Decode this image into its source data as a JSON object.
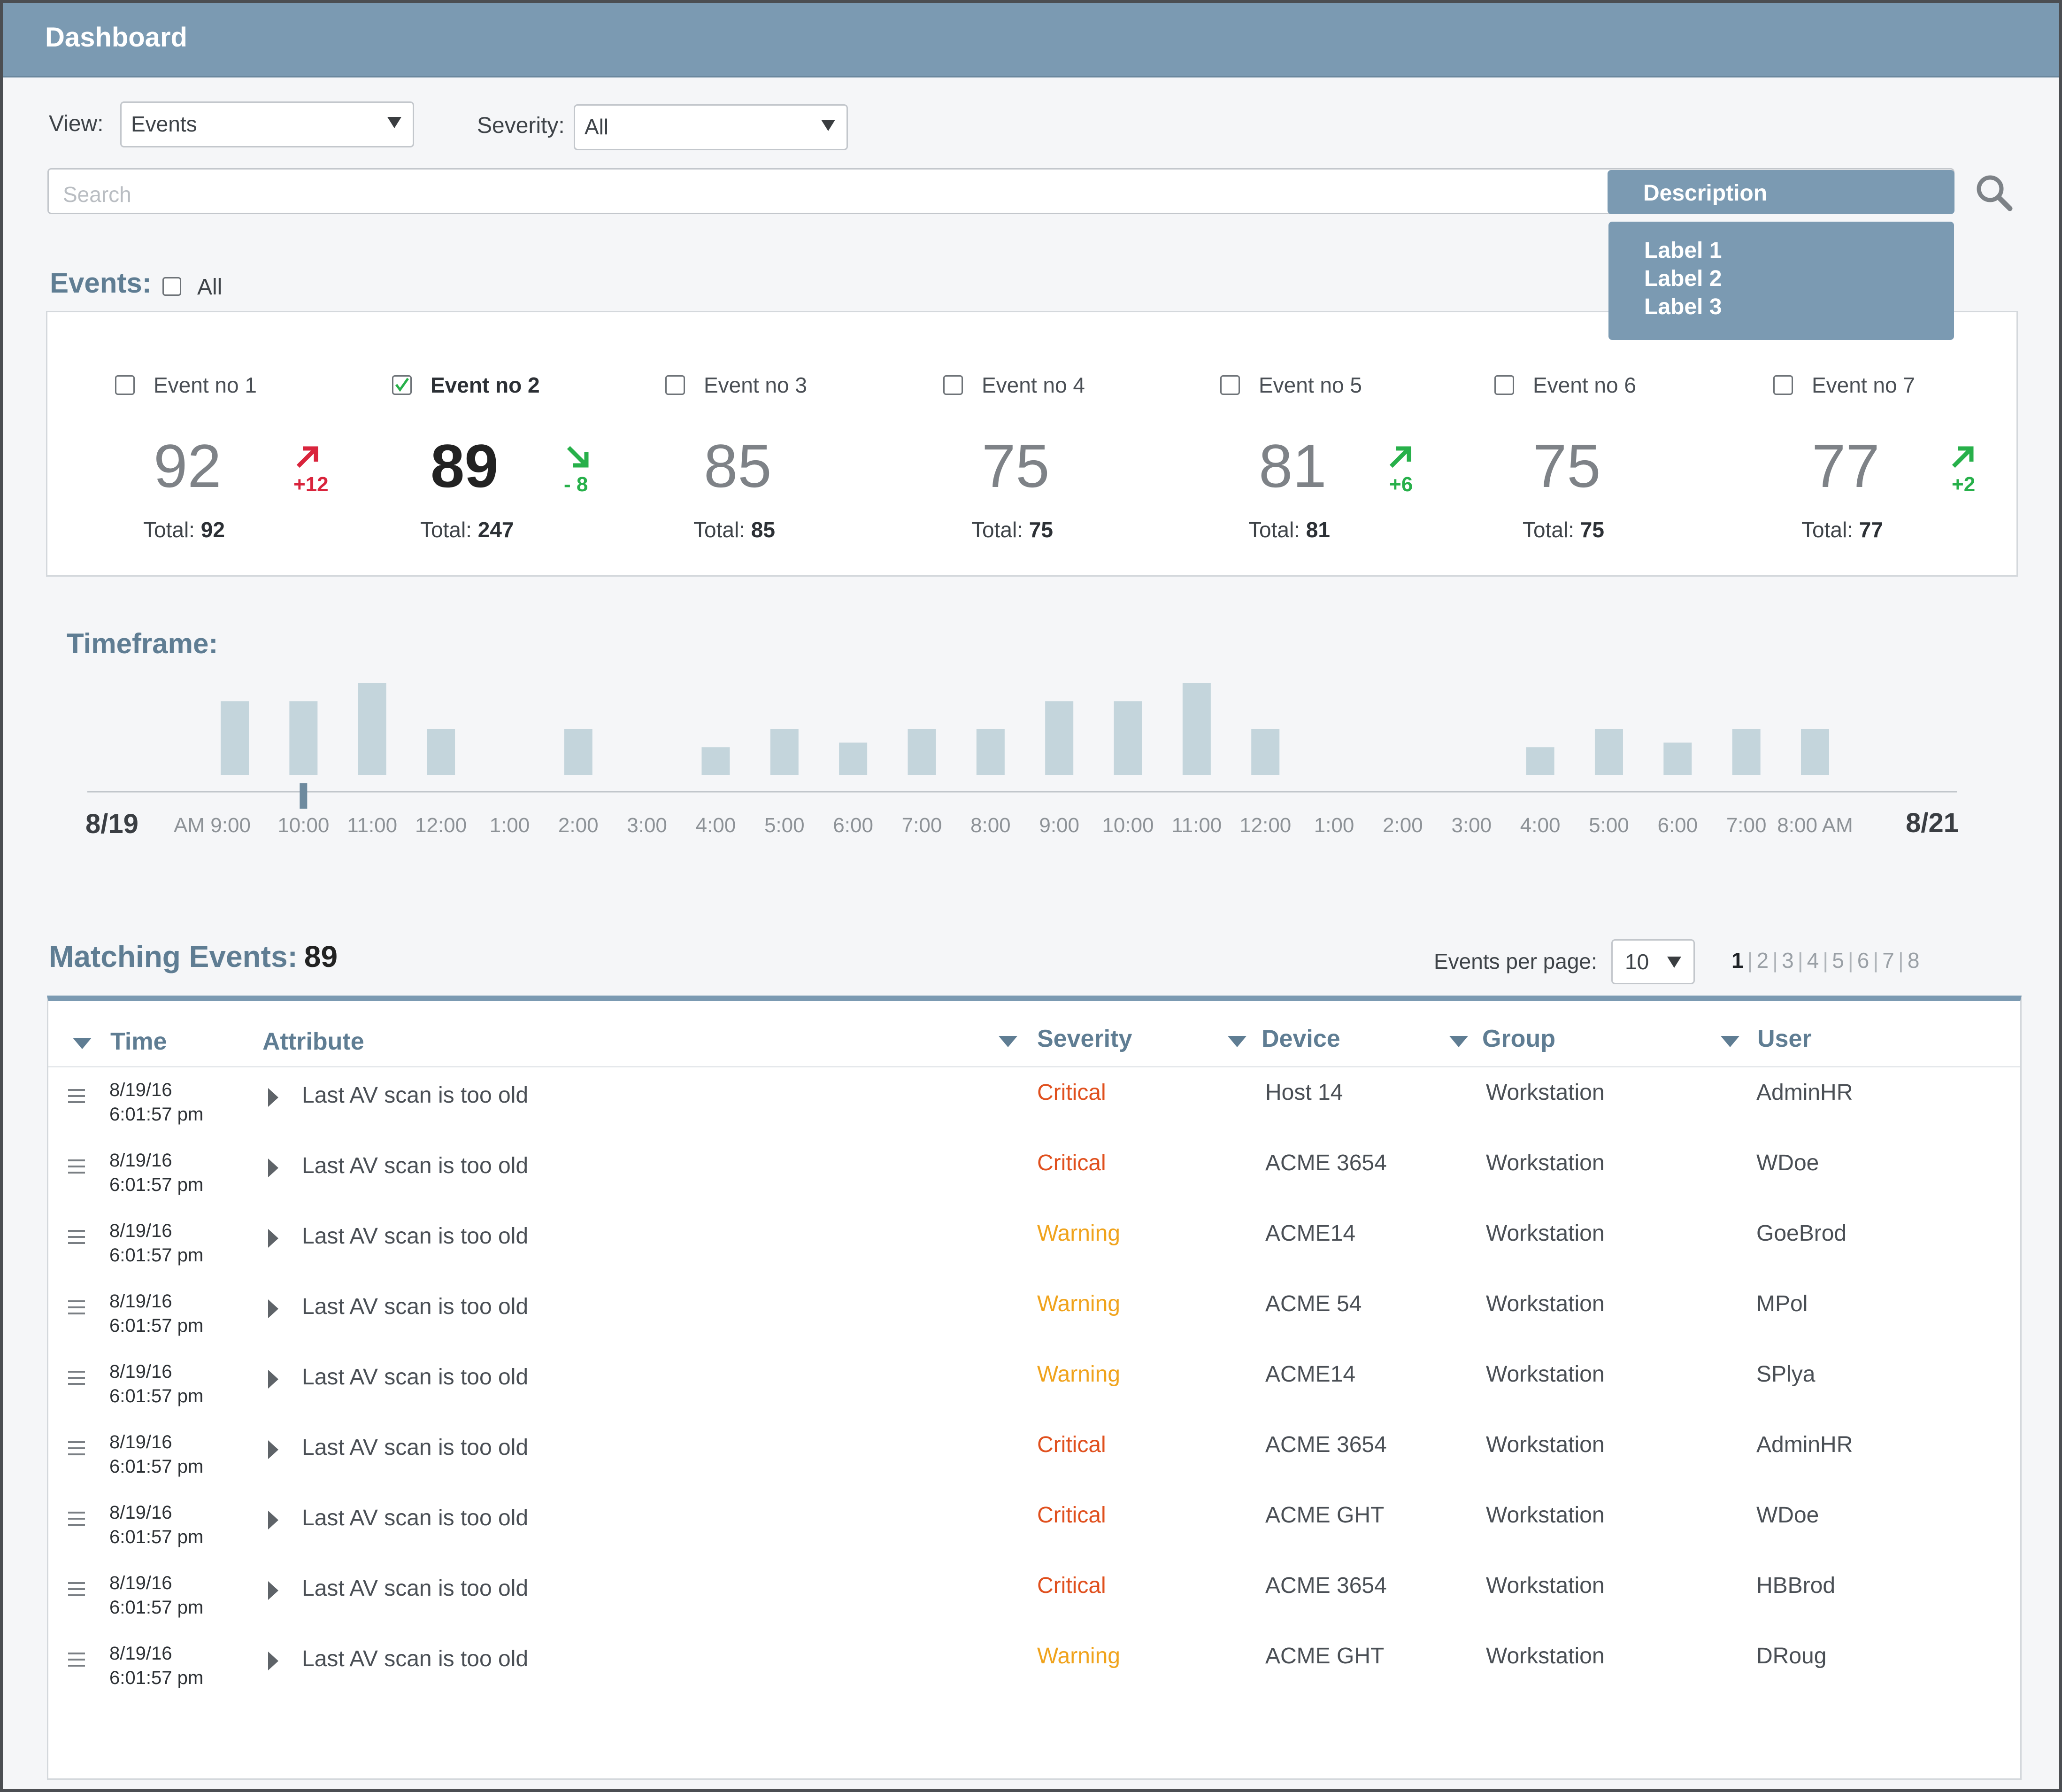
{
  "header": {
    "title": "Dashboard"
  },
  "filters": {
    "view_label": "View:",
    "view_value": "Events",
    "severity_label": "Severity:",
    "severity_value": "All"
  },
  "search": {
    "placeholder": "Search",
    "scope_button": "Description",
    "scope_options": [
      "Label 1",
      "Label 2",
      "Label 3"
    ]
  },
  "events_section": {
    "title": "Events:",
    "all_label": "All",
    "events": [
      {
        "name": "Event no 1",
        "value": "92",
        "delta": "+12",
        "trend": "up-red",
        "total_label": "Total:",
        "total": "92",
        "checked": false
      },
      {
        "name": "Event no 2",
        "value": "89",
        "delta": "- 8",
        "trend": "down-green",
        "total_label": "Total:",
        "total": "247",
        "checked": true
      },
      {
        "name": "Event no 3",
        "value": "85",
        "delta": "",
        "trend": "none",
        "total_label": "Total:",
        "total": "85",
        "checked": false
      },
      {
        "name": "Event no 4",
        "value": "75",
        "delta": "",
        "trend": "none",
        "total_label": "Total:",
        "total": "75",
        "checked": false
      },
      {
        "name": "Event no 5",
        "value": "81",
        "delta": "+6",
        "trend": "up-green",
        "total_label": "Total:",
        "total": "81",
        "checked": false
      },
      {
        "name": "Event no 6",
        "value": "75",
        "delta": "",
        "trend": "none",
        "total_label": "Total:",
        "total": "75",
        "checked": false
      },
      {
        "name": "Event no 7",
        "value": "77",
        "delta": "+2",
        "trend": "up-green",
        "total_label": "Total:",
        "total": "77",
        "checked": false
      }
    ]
  },
  "timeframe": {
    "title": "Timeframe:"
  },
  "chart_data": {
    "type": "bar",
    "title": "",
    "start_label": "8/19",
    "end_label": "8/21",
    "marker_index": 1,
    "categories": [
      "AM 9:00",
      "10:00",
      "11:00",
      "12:00",
      "1:00",
      "2:00",
      "3:00",
      "4:00",
      "5:00",
      "6:00",
      "7:00",
      "8:00",
      "9:00",
      "10:00",
      "11:00",
      "12:00",
      "1:00",
      "2:00",
      "3:00",
      "4:00",
      "5:00",
      "6:00",
      "7:00",
      "8:00 AM"
    ],
    "values": [
      8,
      8,
      10,
      5,
      0,
      5,
      0,
      3,
      5,
      3.5,
      5,
      5,
      8,
      8,
      10,
      5,
      0,
      0,
      0,
      3,
      5,
      3.5,
      5,
      5
    ],
    "ylim": [
      0,
      10
    ],
    "bar_color": "#c4d5dc",
    "axis_color": "#c0c5ca"
  },
  "matching": {
    "label": "Matching Events:",
    "count": "89",
    "per_page_label": "Events per page:",
    "per_page_value": "10",
    "pages": [
      "1",
      "2",
      "3",
      "4",
      "5",
      "6",
      "7",
      "8"
    ],
    "current_page": "1"
  },
  "table": {
    "columns": [
      "Time",
      "Attribute",
      "Severity",
      "Device",
      "Group",
      "User"
    ],
    "rows": [
      {
        "date": "8/19/16",
        "time": "6:01:57 pm",
        "attribute": "Last AV scan is too old",
        "severity": "Critical",
        "device": "Host 14",
        "group": "Workstation",
        "user": "AdminHR"
      },
      {
        "date": "8/19/16",
        "time": "6:01:57 pm",
        "attribute": "Last AV scan is too old",
        "severity": "Critical",
        "device": "ACME 3654",
        "group": "Workstation",
        "user": "WDoe"
      },
      {
        "date": "8/19/16",
        "time": "6:01:57 pm",
        "attribute": "Last AV scan is too old",
        "severity": "Warning",
        "device": "ACME14",
        "group": "Workstation",
        "user": "GoeBrod"
      },
      {
        "date": "8/19/16",
        "time": "6:01:57 pm",
        "attribute": "Last AV scan is too old",
        "severity": "Warning",
        "device": "ACME 54",
        "group": "Workstation",
        "user": "MPol"
      },
      {
        "date": "8/19/16",
        "time": "6:01:57 pm",
        "attribute": "Last AV scan is too old",
        "severity": "Warning",
        "device": "ACME14",
        "group": "Workstation",
        "user": "SPlya"
      },
      {
        "date": "8/19/16",
        "time": "6:01:57 pm",
        "attribute": "Last AV scan is too old",
        "severity": "Critical",
        "device": "ACME 3654",
        "group": "Workstation",
        "user": "AdminHR"
      },
      {
        "date": "8/19/16",
        "time": "6:01:57 pm",
        "attribute": "Last AV scan is too old",
        "severity": "Critical",
        "device": "ACME GHT",
        "group": "Workstation",
        "user": "WDoe"
      },
      {
        "date": "8/19/16",
        "time": "6:01:57 pm",
        "attribute": "Last AV scan is too old",
        "severity": "Critical",
        "device": "ACME 3654",
        "group": "Workstation",
        "user": "HBBrod"
      },
      {
        "date": "8/19/16",
        "time": "6:01:57 pm",
        "attribute": "Last AV scan is too old",
        "severity": "Warning",
        "device": "ACME GHT",
        "group": "Workstation",
        "user": "DRoug"
      }
    ]
  },
  "colors": {
    "accent": "#7b9ab2",
    "critical": "#e0501e",
    "warning": "#f0a31c",
    "trend_red": "#d9243c",
    "trend_green": "#27b04a"
  }
}
